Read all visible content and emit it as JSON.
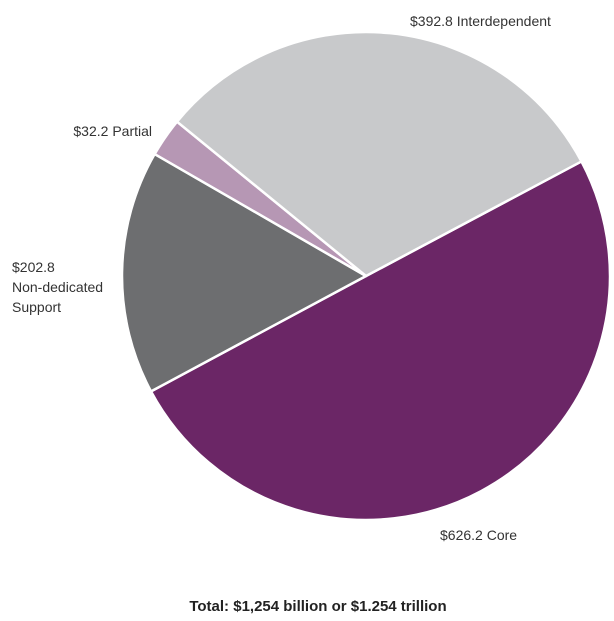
{
  "chart_data": {
    "type": "pie",
    "unit": "$ billion",
    "slices": [
      {
        "name": "Core",
        "value": 626.2,
        "label_lines": [
          "$626.2 Core"
        ],
        "color": "#6b2666"
      },
      {
        "name": "Non-dedicated Support",
        "value": 202.8,
        "label_lines": [
          "$202.8",
          "Non-dedicated",
          "Support"
        ],
        "color": "#6d6e70"
      },
      {
        "name": "Partial",
        "value": 32.2,
        "label_lines": [
          "$32.2 Partial"
        ],
        "color": "#b697b4"
      },
      {
        "name": "Interdependent",
        "value": 392.8,
        "label_lines": [
          "$392.8 Interdependent"
        ],
        "color": "#c8c9cb"
      }
    ],
    "total_text": "Total: $1,254 billion or $1.254 trillion"
  }
}
